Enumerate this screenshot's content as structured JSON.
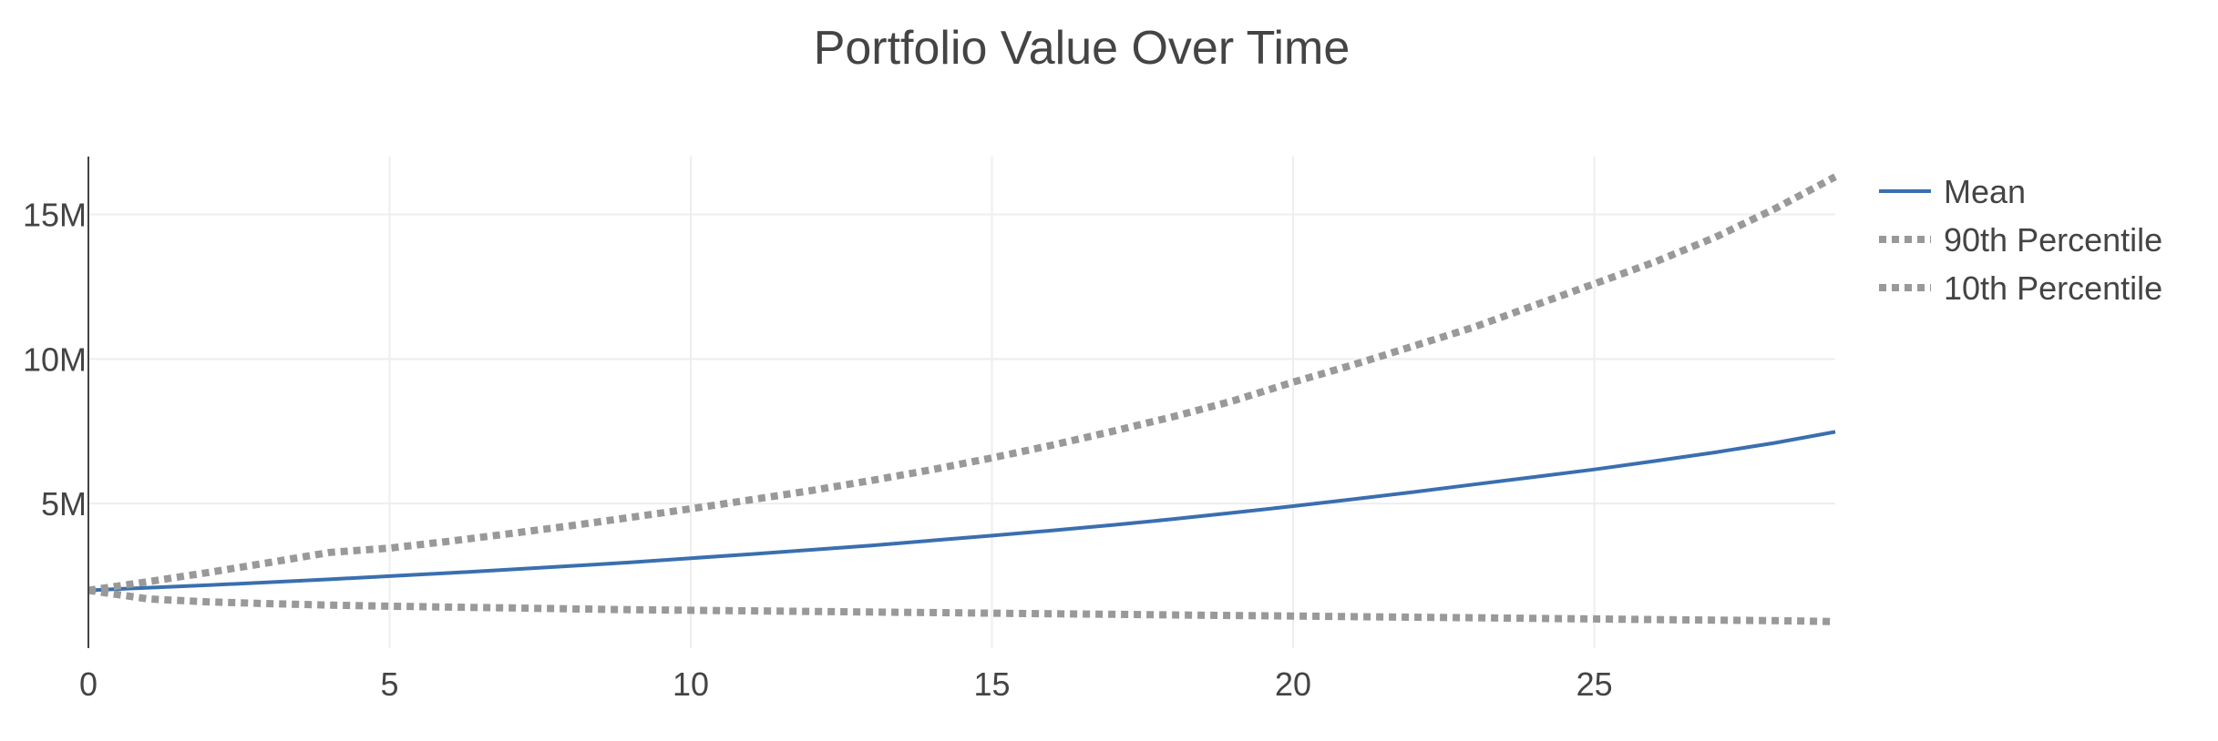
{
  "chart_data": {
    "type": "line",
    "title": "Portfolio Value Over Time",
    "xlabel": "",
    "ylabel": "",
    "xlim": [
      0,
      29
    ],
    "ylim": [
      0,
      17000000
    ],
    "x_ticks": [
      {
        "value": 0,
        "label": "0"
      },
      {
        "value": 5,
        "label": "5"
      },
      {
        "value": 10,
        "label": "10"
      },
      {
        "value": 15,
        "label": "15"
      },
      {
        "value": 20,
        "label": "20"
      },
      {
        "value": 25,
        "label": "25"
      }
    ],
    "y_ticks": [
      {
        "value": 5000000,
        "label": "5M"
      },
      {
        "value": 10000000,
        "label": "10M"
      },
      {
        "value": 15000000,
        "label": "15M"
      }
    ],
    "grid": true,
    "legend_position": "top-right",
    "x": [
      0,
      1,
      2,
      3,
      4,
      5,
      6,
      7,
      8,
      9,
      10,
      11,
      12,
      13,
      14,
      15,
      16,
      17,
      18,
      19,
      20,
      21,
      22,
      23,
      24,
      25,
      26,
      27,
      28,
      29
    ],
    "series": [
      {
        "name": "Mean",
        "style": "solid",
        "color": "#3a6faf",
        "values": [
          2000000,
          2090000,
          2180000,
          2280000,
          2380000,
          2490000,
          2600000,
          2720000,
          2840000,
          2970000,
          3110000,
          3250000,
          3400000,
          3550000,
          3720000,
          3890000,
          4070000,
          4260000,
          4460000,
          4680000,
          4910000,
          5150000,
          5400000,
          5660000,
          5920000,
          6180000,
          6470000,
          6770000,
          7100000,
          7480000
        ]
      },
      {
        "name": "90th Percentile",
        "style": "dotted",
        "color": "#999999",
        "values": [
          2000000,
          2300000,
          2620000,
          2960000,
          3310000,
          3460000,
          3700000,
          3960000,
          4230000,
          4520000,
          4820000,
          5130000,
          5450000,
          5800000,
          6170000,
          6580000,
          7020000,
          7500000,
          8000000,
          8550000,
          9200000,
          9800000,
          10450000,
          11100000,
          11850000,
          12600000,
          13350000,
          14200000,
          15200000,
          16300000
        ]
      },
      {
        "name": "10th Percentile",
        "style": "dotted",
        "color": "#999999",
        "values": [
          2000000,
          1700000,
          1600000,
          1540000,
          1490000,
          1450000,
          1420000,
          1390000,
          1360000,
          1330000,
          1310000,
          1290000,
          1270000,
          1250000,
          1230000,
          1210000,
          1190000,
          1170000,
          1150000,
          1130000,
          1110000,
          1090000,
          1070000,
          1050000,
          1030000,
          1010000,
          990000,
          970000,
          950000,
          920000
        ]
      }
    ]
  }
}
